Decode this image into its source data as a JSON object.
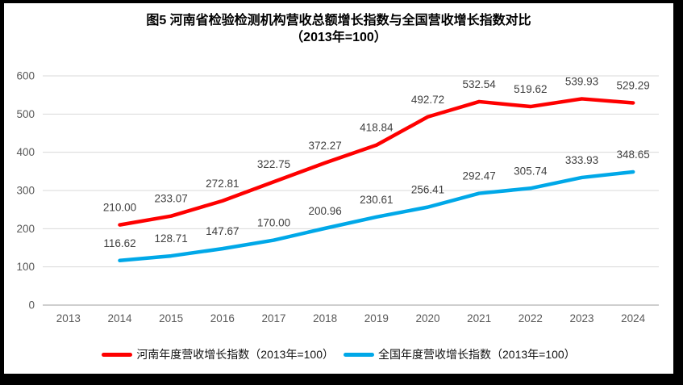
{
  "title": {
    "line1": "图5  河南省检验检测机构营收总额增长指数与全国营收增长指数对比",
    "line2": "（2013年=100）"
  },
  "chart_data": {
    "type": "line",
    "categories": [
      "2013",
      "2014",
      "2015",
      "2016",
      "2017",
      "2018",
      "2019",
      "2020",
      "2021",
      "2022",
      "2023",
      "2024"
    ],
    "series": [
      {
        "name": "河南年度营收增长指数（2013年=100）",
        "color": "#FE0000",
        "start_category": "2014",
        "values": [
          210.0,
          233.07,
          272.81,
          322.75,
          372.27,
          418.84,
          492.72,
          532.54,
          519.62,
          539.93,
          529.29
        ]
      },
      {
        "name": "全国年度营收增长指数（2013年=100）",
        "color": "#00A8E8",
        "start_category": "2014",
        "values": [
          116.62,
          128.71,
          147.67,
          170.0,
          200.96,
          230.61,
          256.41,
          292.47,
          305.74,
          333.93,
          348.65
        ]
      }
    ],
    "ylim": [
      0,
      600
    ],
    "yticks": [
      0,
      100,
      200,
      300,
      400,
      500,
      600
    ],
    "grid": true,
    "data_labels": true,
    "data_label_decimals": 2,
    "legend_position": "bottom"
  },
  "colors": {
    "grid": "#D9D9D9",
    "axis": "#BFBFBF",
    "tick_label": "#595959",
    "data_label": "#404040",
    "frame": "#000000",
    "background": "#FFFFFF"
  }
}
